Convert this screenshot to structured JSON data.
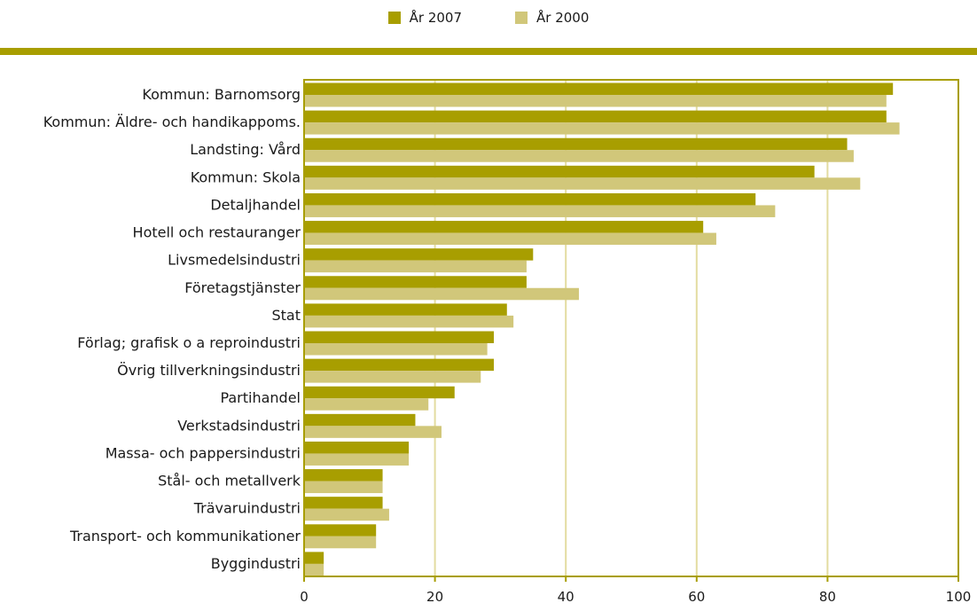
{
  "legend": {
    "items": [
      {
        "label": "År 2007",
        "color": "#a89e00"
      },
      {
        "label": "År 2000",
        "color": "#d1c77a"
      }
    ]
  },
  "colors": {
    "accent": "#a89e00",
    "series_2007": "#a89e00",
    "series_2000": "#d1c77a",
    "grid": "#e3dca0"
  },
  "chart_data": {
    "type": "bar",
    "orientation": "horizontal",
    "categories": [
      "Kommun: Barnomsorg",
      "Kommun: Äldre- och handikappoms.",
      "Landsting: Vård",
      "Kommun: Skola",
      "Detaljhandel",
      "Hotell och restauranger",
      "Livsmedelsindustri",
      "Företagstjänster",
      "Stat",
      "Förlag; grafisk o a reproindustri",
      "Övrig tillverkningsindustri",
      "Partihandel",
      "Verkstadsindustri",
      "Massa- och pappersindustri",
      "Stål- och metallverk",
      "Trävaruindustri",
      "Transport- och kommunikationer",
      "Byggindustri"
    ],
    "series": [
      {
        "name": "År 2007",
        "values": [
          90,
          89,
          83,
          78,
          69,
          61,
          35,
          34,
          31,
          29,
          29,
          23,
          17,
          16,
          12,
          12,
          11,
          3
        ]
      },
      {
        "name": "År 2000",
        "values": [
          89,
          91,
          84,
          85,
          72,
          63,
          34,
          42,
          32,
          28,
          27,
          19,
          21,
          16,
          12,
          13,
          11,
          3
        ]
      }
    ],
    "xlim": [
      0,
      100
    ],
    "xticks": [
      "0",
      "20",
      "40",
      "60",
      "80",
      "100"
    ],
    "grid": true,
    "legend_position": "top-center"
  }
}
